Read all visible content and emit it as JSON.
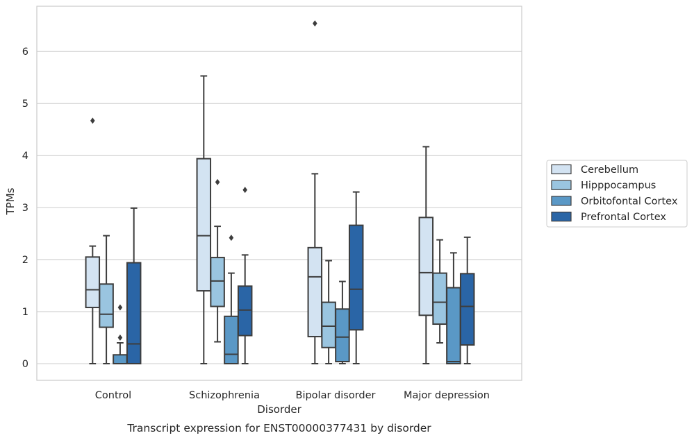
{
  "chart_data": {
    "type": "box",
    "caption": "Transcript expression for ENST00000377431 by disorder",
    "xlabel": "Disorder",
    "ylabel": "TPMs",
    "ylim": [
      -0.32,
      6.87
    ],
    "yticks": [
      0,
      1,
      2,
      3,
      4,
      5,
      6
    ],
    "grid": true,
    "legend_position": "right",
    "categories": [
      "Control",
      "Schizophrenia",
      "Bipolar disorder",
      "Major depression"
    ],
    "series": [
      {
        "name": "Cerebellum",
        "color": "#d3e3f2",
        "boxes": [
          {
            "whisker_low": 0.0,
            "q1": 1.08,
            "median": 1.42,
            "q3": 2.05,
            "whisker_high": 2.26,
            "outliers": [
              4.67
            ]
          },
          {
            "whisker_low": 0.0,
            "q1": 1.4,
            "median": 2.46,
            "q3": 3.94,
            "whisker_high": 5.53,
            "outliers": []
          },
          {
            "whisker_low": 0.0,
            "q1": 0.52,
            "median": 1.67,
            "q3": 2.23,
            "whisker_high": 3.65,
            "outliers": [
              6.54
            ]
          },
          {
            "whisker_low": 0.0,
            "q1": 0.93,
            "median": 1.75,
            "q3": 2.81,
            "whisker_high": 4.17,
            "outliers": []
          }
        ]
      },
      {
        "name": "Hipppocampus",
        "color": "#9ac5e0",
        "boxes": [
          {
            "whisker_low": 0.0,
            "q1": 0.7,
            "median": 0.95,
            "q3": 1.53,
            "whisker_high": 2.46,
            "outliers": []
          },
          {
            "whisker_low": 0.42,
            "q1": 1.1,
            "median": 1.59,
            "q3": 2.04,
            "whisker_high": 2.64,
            "outliers": [
              3.49
            ]
          },
          {
            "whisker_low": 0.0,
            "q1": 0.31,
            "median": 0.72,
            "q3": 1.18,
            "whisker_high": 1.98,
            "outliers": []
          },
          {
            "whisker_low": 0.4,
            "q1": 0.76,
            "median": 1.18,
            "q3": 1.74,
            "whisker_high": 2.38,
            "outliers": []
          }
        ]
      },
      {
        "name": "Orbitofontal Cortex",
        "color": "#5a98c6",
        "boxes": [
          {
            "whisker_low": 0.0,
            "q1": 0.0,
            "median": 0.0,
            "q3": 0.17,
            "whisker_high": 0.4,
            "outliers": [
              0.5,
              1.08
            ]
          },
          {
            "whisker_low": 0.0,
            "q1": 0.0,
            "median": 0.18,
            "q3": 0.91,
            "whisker_high": 1.74,
            "outliers": [
              2.42
            ]
          },
          {
            "whisker_low": 0.0,
            "q1": 0.04,
            "median": 0.51,
            "q3": 1.05,
            "whisker_high": 1.58,
            "outliers": []
          },
          {
            "whisker_low": 0.0,
            "q1": 0.0,
            "median": 0.04,
            "q3": 1.46,
            "whisker_high": 2.13,
            "outliers": []
          }
        ]
      },
      {
        "name": "Prefrontal Cortex",
        "color": "#2a65a6",
        "boxes": [
          {
            "whisker_low": 0.0,
            "q1": 0.0,
            "median": 0.38,
            "q3": 1.94,
            "whisker_high": 2.99,
            "outliers": []
          },
          {
            "whisker_low": 0.0,
            "q1": 0.54,
            "median": 1.03,
            "q3": 1.49,
            "whisker_high": 2.09,
            "outliers": [
              3.34
            ]
          },
          {
            "whisker_low": 0.0,
            "q1": 0.65,
            "median": 1.43,
            "q3": 2.66,
            "whisker_high": 3.3,
            "outliers": []
          },
          {
            "whisker_low": 0.0,
            "q1": 0.36,
            "median": 1.1,
            "q3": 1.73,
            "whisker_high": 2.43,
            "outliers": []
          }
        ]
      }
    ]
  }
}
